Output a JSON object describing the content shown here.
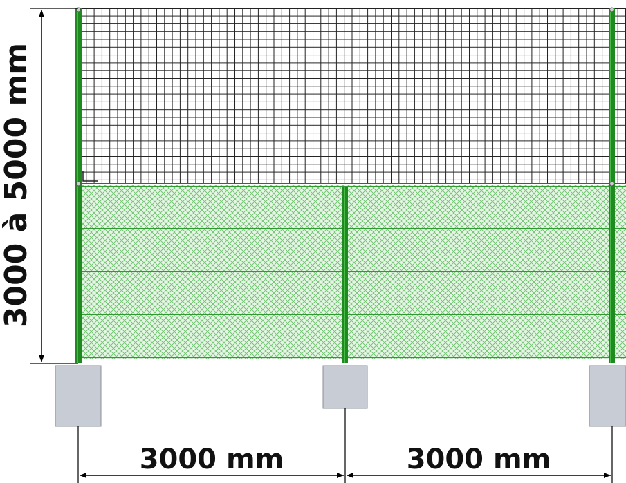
{
  "dimensions": {
    "height_label": "3000 à 5000 mm",
    "span_left_label": "3000 mm",
    "span_right_label": "3000 mm"
  },
  "colors": {
    "post": "#1f8a1f",
    "post_highlight": "#48b848",
    "lower_mesh": "#5fb85f",
    "lower_mesh_bg": "#e4f4e4",
    "tension_wire": "#2f9a2f",
    "upper_mesh": "#222222",
    "footing": "#c8ccd4",
    "footing_edge": "#8a8f99",
    "dimension_line": "#000000"
  }
}
